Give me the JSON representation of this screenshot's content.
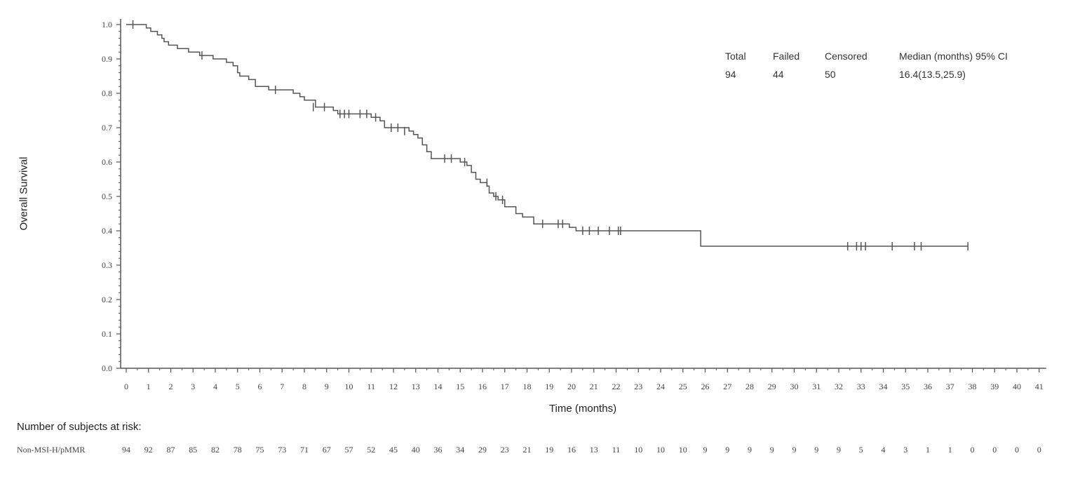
{
  "chart_data": {
    "type": "line",
    "xlabel": "Time (months)",
    "ylabel": "Overall Survival",
    "xlim": [
      0,
      41
    ],
    "ylim": [
      0,
      1.0
    ],
    "x_ticks": [
      "0",
      "1",
      "2",
      "3",
      "4",
      "5",
      "6",
      "7",
      "8",
      "9",
      "10",
      "11",
      "12",
      "13",
      "14",
      "15",
      "16",
      "17",
      "18",
      "19",
      "20",
      "21",
      "22",
      "23",
      "24",
      "25",
      "26",
      "27",
      "28",
      "29",
      "30",
      "31",
      "32",
      "33",
      "34",
      "35",
      "36",
      "37",
      "38",
      "39",
      "40",
      "41"
    ],
    "y_ticks": [
      "0.0",
      "0.1",
      "0.2",
      "0.3",
      "0.4",
      "0.5",
      "0.6",
      "0.7",
      "0.8",
      "0.9",
      "1.0"
    ],
    "series": [
      {
        "steps": [
          [
            0,
            1.0
          ],
          [
            0.9,
            0.99
          ],
          [
            1.1,
            0.98
          ],
          [
            1.4,
            0.97
          ],
          [
            1.6,
            0.96
          ],
          [
            1.7,
            0.95
          ],
          [
            1.9,
            0.94
          ],
          [
            2.3,
            0.93
          ],
          [
            2.8,
            0.92
          ],
          [
            3.3,
            0.91
          ],
          [
            3.9,
            0.9
          ],
          [
            4.5,
            0.89
          ],
          [
            4.8,
            0.88
          ],
          [
            5.0,
            0.86
          ],
          [
            5.1,
            0.85
          ],
          [
            5.5,
            0.84
          ],
          [
            5.8,
            0.82
          ],
          [
            6.4,
            0.81
          ],
          [
            7.5,
            0.8
          ],
          [
            7.8,
            0.79
          ],
          [
            8.0,
            0.78
          ],
          [
            8.5,
            0.76
          ],
          [
            9.3,
            0.75
          ],
          [
            9.5,
            0.74
          ],
          [
            11.0,
            0.73
          ],
          [
            11.4,
            0.72
          ],
          [
            11.6,
            0.7
          ],
          [
            12.7,
            0.69
          ],
          [
            12.9,
            0.68
          ],
          [
            13.1,
            0.67
          ],
          [
            13.3,
            0.65
          ],
          [
            13.5,
            0.63
          ],
          [
            13.7,
            0.61
          ],
          [
            15.0,
            0.6
          ],
          [
            15.3,
            0.59
          ],
          [
            15.5,
            0.57
          ],
          [
            15.7,
            0.55
          ],
          [
            15.9,
            0.54
          ],
          [
            16.2,
            0.53
          ],
          [
            16.3,
            0.51
          ],
          [
            16.5,
            0.5
          ],
          [
            16.7,
            0.49
          ],
          [
            17.0,
            0.47
          ],
          [
            17.5,
            0.45
          ],
          [
            17.8,
            0.44
          ],
          [
            18.3,
            0.42
          ],
          [
            19.9,
            0.41
          ],
          [
            20.2,
            0.4
          ],
          [
            25.8,
            0.355
          ]
        ],
        "end_x": 37.8,
        "censored": [
          [
            0.3,
            1.0
          ],
          [
            3.4,
            0.91
          ],
          [
            6.7,
            0.81
          ],
          [
            8.4,
            0.76
          ],
          [
            8.9,
            0.76
          ],
          [
            9.6,
            0.74
          ],
          [
            9.8,
            0.74
          ],
          [
            10.0,
            0.74
          ],
          [
            10.5,
            0.74
          ],
          [
            10.8,
            0.74
          ],
          [
            11.2,
            0.73
          ],
          [
            11.9,
            0.7
          ],
          [
            12.2,
            0.7
          ],
          [
            12.5,
            0.69
          ],
          [
            14.3,
            0.61
          ],
          [
            14.6,
            0.61
          ],
          [
            15.2,
            0.6
          ],
          [
            16.2,
            0.54
          ],
          [
            16.6,
            0.5
          ],
          [
            16.9,
            0.49
          ],
          [
            18.7,
            0.42
          ],
          [
            19.4,
            0.42
          ],
          [
            19.6,
            0.42
          ],
          [
            20.5,
            0.4
          ],
          [
            20.8,
            0.4
          ],
          [
            21.2,
            0.4
          ],
          [
            21.7,
            0.4
          ],
          [
            22.1,
            0.4
          ],
          [
            22.2,
            0.4
          ],
          [
            32.4,
            0.355
          ],
          [
            32.8,
            0.355
          ],
          [
            33.0,
            0.355
          ],
          [
            33.2,
            0.355
          ],
          [
            34.4,
            0.355
          ],
          [
            35.4,
            0.355
          ],
          [
            35.7,
            0.355
          ],
          [
            37.8,
            0.355
          ]
        ]
      }
    ],
    "grid": false,
    "legend_placement": "none",
    "line_color": "#555555"
  },
  "stats_table": {
    "headers": [
      "Total",
      "Failed",
      "Censored",
      "Median (months) 95% CI"
    ],
    "values": [
      "94",
      "44",
      "50",
      "16.4(13.5,25.9)"
    ]
  },
  "risk_table": {
    "title": "Number of subjects at risk:",
    "group_label": "Non-MSI-H/pMMR",
    "counts": [
      "94",
      "92",
      "87",
      "85",
      "82",
      "78",
      "75",
      "73",
      "71",
      "67",
      "57",
      "52",
      "45",
      "40",
      "36",
      "34",
      "29",
      "23",
      "21",
      "19",
      "16",
      "13",
      "11",
      "10",
      "10",
      "10",
      "9",
      "9",
      "9",
      "9",
      "9",
      "9",
      "9",
      "5",
      "4",
      "3",
      "1",
      "1",
      "0",
      "0",
      "0",
      "0"
    ]
  }
}
